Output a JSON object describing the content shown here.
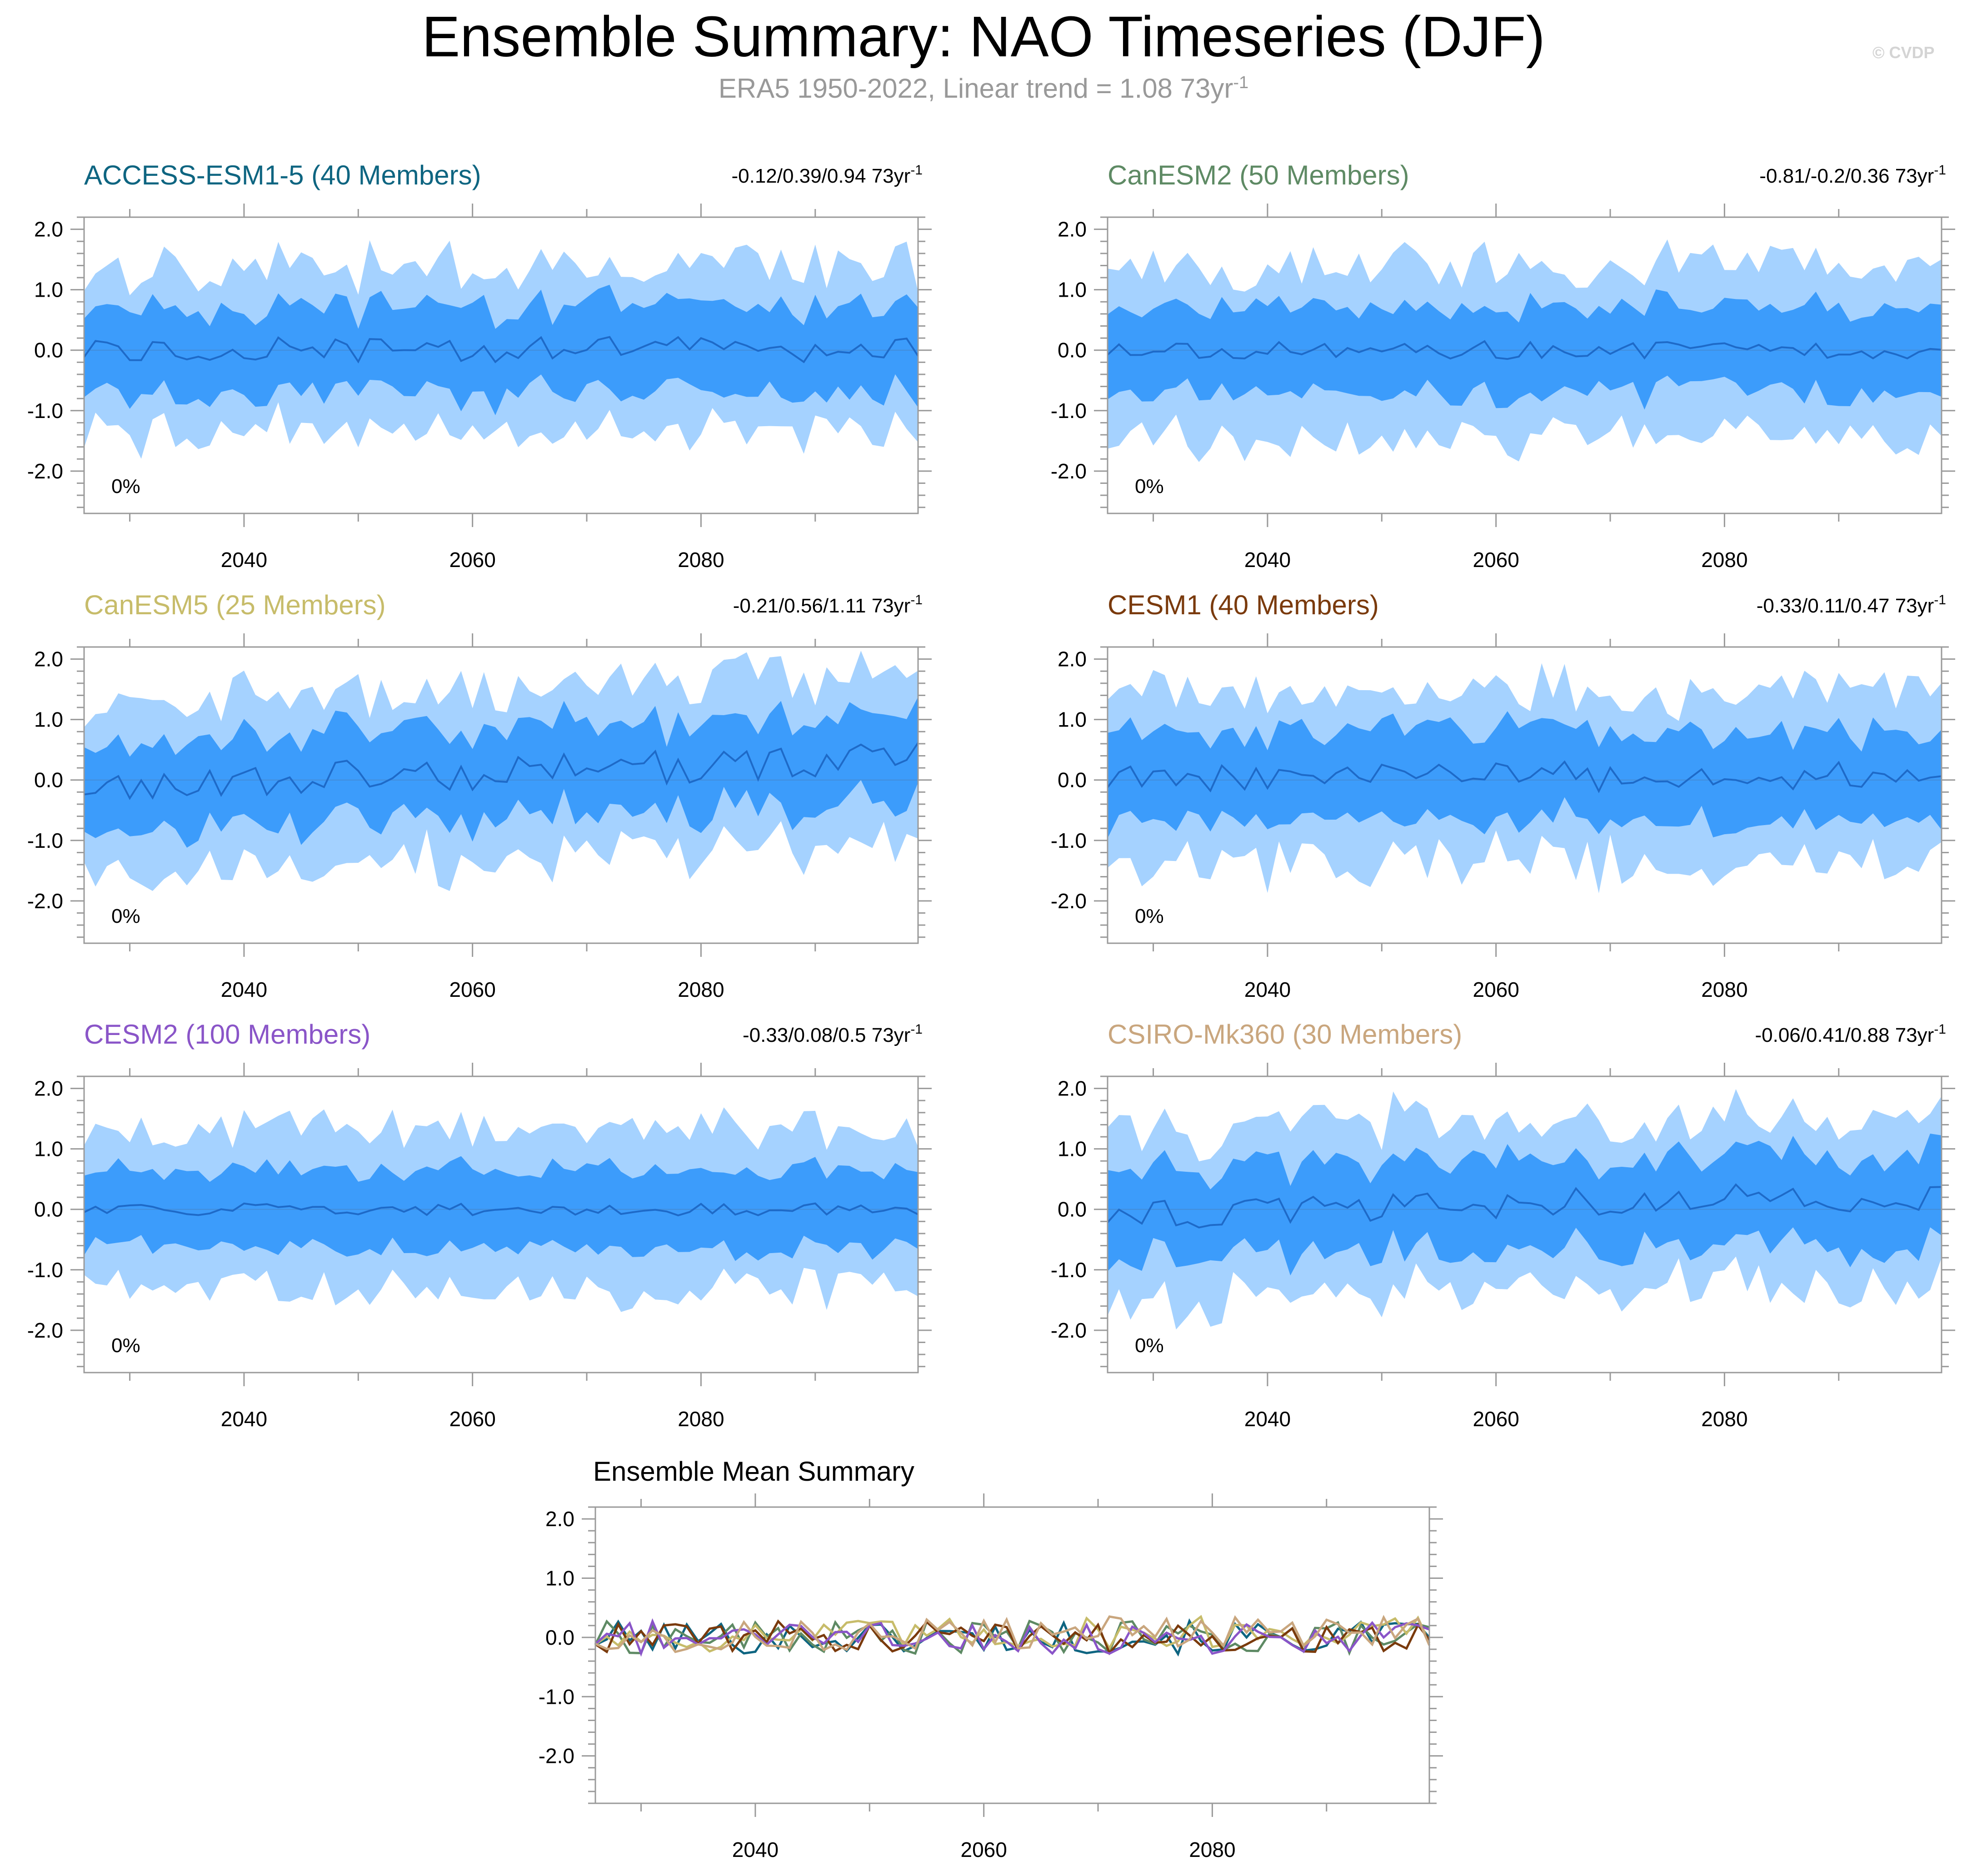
{
  "title": "Ensemble Summary: NAO Timeseries (DJF)",
  "subtitle": {
    "text": "ERA5 1950-2022, Linear trend = 1.08 73yr",
    "superscript": "-1"
  },
  "copyright": "© CVDP",
  "colors": {
    "outer_band": "#a5d2ff",
    "inner_band": "#3c9cfb",
    "median_line": "#1e6ac8",
    "frame": "#9a9a9a"
  },
  "chart_data": [
    {
      "type": "area",
      "title": "ACCESS-ESM1-5 (40 Members)",
      "title_color": "#0e6581",
      "trend": "-0.12/0.39/0.94 73yr",
      "trend_superscript": "-1",
      "percent_label": "0%",
      "x": {
        "start": 2026,
        "end": 2099
      },
      "ylim": [
        -2.7,
        2.2
      ],
      "yticks": [
        "2.0",
        "1.0",
        "0.0",
        "-1.0",
        "-2.0"
      ],
      "ytick_values": [
        2,
        1,
        0,
        -1,
        -2
      ],
      "xticks": [
        "2040",
        "2060",
        "2080"
      ],
      "xtick_values": [
        2040,
        2060,
        2080
      ],
      "seed": 11,
      "median_amp": 0.22,
      "median_offset": 0.0,
      "drift": 0.0,
      "inner_spread": 0.68,
      "outer_spread": 1.4
    },
    {
      "type": "area",
      "title": "CanESM2 (50 Members)",
      "title_color": "#5e8a64",
      "trend": "-0.81/-0.2/0.36 73yr",
      "trend_superscript": "-1",
      "percent_label": "0%",
      "x": {
        "start": 2026,
        "end": 2099
      },
      "ylim": [
        -2.7,
        2.2
      ],
      "yticks": [
        "2.0",
        "1.0",
        "0.0",
        "-1.0",
        "-2.0"
      ],
      "ytick_values": [
        2,
        1,
        0,
        -1,
        -2
      ],
      "xticks": [
        "2040",
        "2060",
        "2080"
      ],
      "xtick_values": [
        2040,
        2060,
        2080
      ],
      "seed": 23,
      "median_amp": 0.15,
      "median_offset": 0.0,
      "drift": 0.0,
      "inner_spread": 0.68,
      "outer_spread": 1.45
    },
    {
      "type": "area",
      "title": "CanESM5 (25 Members)",
      "title_color": "#c7bc6a",
      "trend": "-0.21/0.56/1.11 73yr",
      "trend_superscript": "-1",
      "percent_label": "0%",
      "x": {
        "start": 2026,
        "end": 2099
      },
      "ylim": [
        -2.7,
        2.2
      ],
      "yticks": [
        "2.0",
        "1.0",
        "0.0",
        "-1.0",
        "-2.0"
      ],
      "ytick_values": [
        2,
        1,
        0,
        -1,
        -2
      ],
      "xticks": [
        "2040",
        "2060",
        "2080"
      ],
      "xtick_values": [
        2040,
        2060,
        2080
      ],
      "seed": 37,
      "median_amp": 0.28,
      "median_offset": -0.1,
      "drift": 0.45,
      "inner_spread": 0.7,
      "outer_spread": 1.45
    },
    {
      "type": "area",
      "title": "CESM1 (40 Members)",
      "title_color": "#7a3a0c",
      "trend": "-0.33/0.11/0.47 73yr",
      "trend_superscript": "-1",
      "percent_label": "0%",
      "x": {
        "start": 2026,
        "end": 2099
      },
      "ylim": [
        -2.7,
        2.2
      ],
      "yticks": [
        "2.0",
        "1.0",
        "0.0",
        "-1.0",
        "-2.0"
      ],
      "ytick_values": [
        2,
        1,
        0,
        -1,
        -2
      ],
      "xticks": [
        "2040",
        "2060",
        "2080"
      ],
      "xtick_values": [
        2040,
        2060,
        2080
      ],
      "seed": 51,
      "median_amp": 0.25,
      "median_offset": 0.0,
      "drift": 0.1,
      "inner_spread": 0.72,
      "outer_spread": 1.45
    },
    {
      "type": "area",
      "title": "CESM2 (100 Members)",
      "title_color": "#8a55c8",
      "trend": "-0.33/0.08/0.5 73yr",
      "trend_superscript": "-1",
      "percent_label": "0%",
      "x": {
        "start": 2026,
        "end": 2099
      },
      "ylim": [
        -2.7,
        2.2
      ],
      "yticks": [
        "2.0",
        "1.0",
        "0.0",
        "-1.0",
        "-2.0"
      ],
      "ytick_values": [
        2,
        1,
        0,
        -1,
        -2
      ],
      "xticks": [
        "2040",
        "2060",
        "2080"
      ],
      "xtick_values": [
        2040,
        2060,
        2080
      ],
      "seed": 67,
      "median_amp": 0.1,
      "median_offset": 0.0,
      "drift": 0.0,
      "inner_spread": 0.62,
      "outer_spread": 1.35
    },
    {
      "type": "area",
      "title": "CSIRO-Mk360 (30 Members)",
      "title_color": "#c9a67e",
      "trend": "-0.06/0.41/0.88 73yr",
      "trend_superscript": "-1",
      "percent_label": "0%",
      "x": {
        "start": 2026,
        "end": 2099
      },
      "ylim": [
        -2.7,
        2.2
      ],
      "yticks": [
        "2.0",
        "1.0",
        "0.0",
        "-1.0",
        "-2.0"
      ],
      "ytick_values": [
        2,
        1,
        0,
        -1,
        -2
      ],
      "xticks": [
        "2040",
        "2060",
        "2080"
      ],
      "xtick_values": [
        2040,
        2060,
        2080
      ],
      "seed": 83,
      "median_amp": 0.25,
      "median_offset": -0.1,
      "drift": 0.35,
      "inner_spread": 0.72,
      "outer_spread": 1.45
    },
    {
      "type": "line",
      "title": "Ensemble Mean Summary",
      "title_color": "#000000",
      "x": {
        "start": 2026,
        "end": 2099
      },
      "ylim": [
        -2.8,
        2.2
      ],
      "yticks": [
        "2.0",
        "1.0",
        "0.0",
        "-1.0",
        "-2.0"
      ],
      "ytick_values": [
        2,
        1,
        0,
        -1,
        -2
      ],
      "xticks": [
        "2040",
        "2060",
        "2080"
      ],
      "xtick_values": [
        2040,
        2060,
        2080
      ],
      "series": [
        {
          "name": "ACCESS-ESM1-5",
          "color": "#0e6581"
        },
        {
          "name": "CanESM2",
          "color": "#5e8a64"
        },
        {
          "name": "CanESM5",
          "color": "#c7bc6a"
        },
        {
          "name": "CESM1",
          "color": "#7a3a0c"
        },
        {
          "name": "CESM2",
          "color": "#8a55c8"
        },
        {
          "name": "CSIRO-Mk360",
          "color": "#c9a67e"
        }
      ]
    }
  ]
}
